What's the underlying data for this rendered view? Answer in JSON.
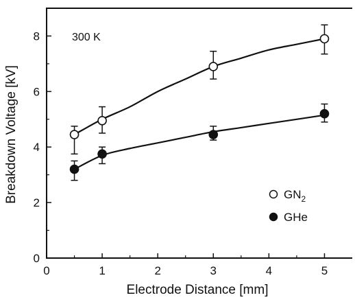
{
  "chart_data": {
    "type": "scatter",
    "title": "",
    "xlabel": "Electrode Distance [mm]",
    "ylabel": "Breakdown Voltage [kV]",
    "xlim": [
      0,
      5.5
    ],
    "ylim": [
      0,
      9
    ],
    "xticks": [
      0,
      1,
      2,
      3,
      4,
      5
    ],
    "yticks": [
      0,
      2,
      4,
      6,
      8
    ],
    "grid": false,
    "legend_position": "right",
    "annotation": "300 K",
    "series": [
      {
        "name": "GN2",
        "display_base": "GN",
        "display_sub": "2",
        "marker": "open-circle",
        "color": "#111111",
        "points": [
          {
            "x": 0.5,
            "y": 4.45,
            "err_low": 3.75,
            "err_high": 4.75
          },
          {
            "x": 1.0,
            "y": 4.95,
            "err_low": 4.5,
            "err_high": 5.45
          },
          {
            "x": 3.0,
            "y": 6.9,
            "err_low": 6.45,
            "err_high": 7.45
          },
          {
            "x": 5.0,
            "y": 7.9,
            "err_low": 7.35,
            "err_high": 8.4
          }
        ],
        "fit": [
          [
            0.5,
            4.45
          ],
          [
            1.0,
            5.0
          ],
          [
            1.5,
            5.45
          ],
          [
            2.0,
            6.0
          ],
          [
            2.5,
            6.45
          ],
          [
            3.0,
            6.9
          ],
          [
            3.5,
            7.2
          ],
          [
            4.0,
            7.5
          ],
          [
            4.5,
            7.7
          ],
          [
            5.0,
            7.9
          ]
        ]
      },
      {
        "name": "GHe",
        "display_base": "GHe",
        "display_sub": "",
        "marker": "filled-circle",
        "color": "#111111",
        "points": [
          {
            "x": 0.5,
            "y": 3.2,
            "err_low": 2.8,
            "err_high": 3.5
          },
          {
            "x": 1.0,
            "y": 3.75,
            "err_low": 3.4,
            "err_high": 4.0
          },
          {
            "x": 3.0,
            "y": 4.45,
            "err_low": 4.25,
            "err_high": 4.75
          },
          {
            "x": 5.0,
            "y": 5.2,
            "err_low": 4.9,
            "err_high": 5.55
          }
        ],
        "fit": [
          [
            0.5,
            3.2
          ],
          [
            1.0,
            3.7
          ],
          [
            1.5,
            3.95
          ],
          [
            2.0,
            4.15
          ],
          [
            2.5,
            4.35
          ],
          [
            3.0,
            4.55
          ],
          [
            3.5,
            4.7
          ],
          [
            4.0,
            4.85
          ],
          [
            4.5,
            5.0
          ],
          [
            5.0,
            5.15
          ]
        ]
      }
    ]
  }
}
